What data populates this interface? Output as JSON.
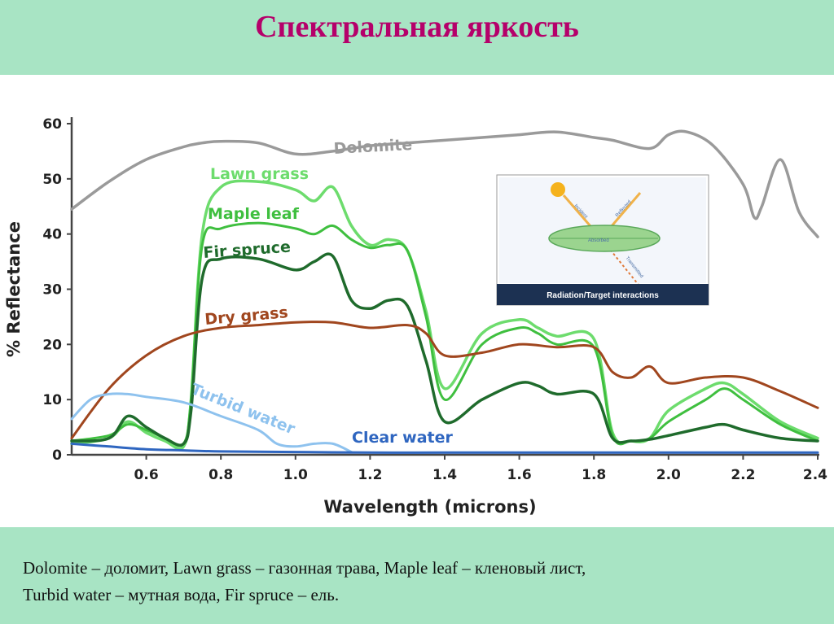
{
  "slide": {
    "title": "Спектральная яркость",
    "caption_line1": "Dolomite – доломит,  Lawn grass – газонная трава,  Maple leaf – кленовый лист,",
    "caption_line2": "Turbid water – мутная вода, Fir spruce – ель."
  },
  "inset": {
    "caption": "Radiation/Target interactions",
    "incident": "Incident",
    "reflected": "Reflected",
    "absorbed": "Absorbed",
    "transmitted": "Transmitted"
  },
  "colors": {
    "dolomite": "#9a9a9a",
    "lawn_grass": "#6ddc6d",
    "maple_leaf": "#3fbf3f",
    "fir_spruce": "#1f6b2c",
    "dry_grass": "#a0461e",
    "turbid_water": "#8ec2ee",
    "clear_water": "#2f66c0",
    "axis": "#444444"
  },
  "chart_data": {
    "type": "line",
    "title": "",
    "xlabel": "Wavelength (microns)",
    "ylabel": "% Reflectance",
    "xlim": [
      0.4,
      2.4
    ],
    "ylim": [
      0,
      60
    ],
    "x_ticks": [
      0.6,
      0.8,
      1.0,
      1.2,
      1.4,
      1.6,
      1.8,
      2.0,
      2.2,
      2.4
    ],
    "x_tick_labels": [
      "0.6",
      "0.8",
      "1.0",
      "1.2",
      "1.4",
      "1.6",
      "1.8",
      "2.0",
      "2.2",
      "2.4"
    ],
    "y_ticks": [
      0,
      10,
      20,
      30,
      40,
      50,
      60
    ],
    "y_tick_labels": [
      "0",
      "10",
      "20",
      "30",
      "40",
      "50",
      "60"
    ],
    "grid": false,
    "series": [
      {
        "key": "dolomite",
        "name": "Dolomite",
        "x": [
          0.4,
          0.5,
          0.6,
          0.7,
          0.75,
          0.8,
          0.9,
          1.0,
          1.1,
          1.2,
          1.3,
          1.4,
          1.5,
          1.6,
          1.7,
          1.8,
          1.85,
          1.95,
          2.0,
          2.05,
          2.12,
          2.2,
          2.23,
          2.25,
          2.3,
          2.35,
          2.4
        ],
        "y": [
          44.5,
          49.5,
          53.5,
          55.8,
          56.5,
          56.8,
          56.5,
          54.5,
          55,
          56,
          56.5,
          57,
          57.5,
          58,
          58.5,
          57.5,
          57,
          55.5,
          58,
          58.5,
          56,
          49,
          43,
          45,
          53.5,
          44,
          39.5
        ]
      },
      {
        "key": "lawn_grass",
        "name": "Lawn grass",
        "x": [
          0.4,
          0.5,
          0.55,
          0.6,
          0.65,
          0.7,
          0.72,
          0.75,
          0.8,
          0.9,
          1.0,
          1.05,
          1.1,
          1.15,
          1.2,
          1.25,
          1.3,
          1.35,
          1.4,
          1.5,
          1.6,
          1.65,
          1.7,
          1.8,
          1.85,
          1.9,
          1.95,
          2.0,
          2.1,
          2.15,
          2.2,
          2.3,
          2.4
        ],
        "y": [
          2,
          3,
          6,
          4,
          2.5,
          1.5,
          10,
          40,
          48.5,
          49.5,
          48,
          46,
          48.5,
          41.5,
          38,
          39,
          37,
          26,
          12,
          22,
          24.5,
          23,
          21.5,
          21,
          4,
          2.5,
          3,
          8,
          12,
          13,
          11,
          6,
          3
        ]
      },
      {
        "key": "maple_leaf",
        "name": "Maple leaf",
        "x": [
          0.4,
          0.5,
          0.55,
          0.6,
          0.65,
          0.7,
          0.72,
          0.75,
          0.8,
          0.9,
          1.0,
          1.05,
          1.1,
          1.15,
          1.2,
          1.25,
          1.3,
          1.35,
          1.4,
          1.5,
          1.6,
          1.65,
          1.7,
          1.8,
          1.85,
          1.9,
          1.95,
          2.0,
          2.1,
          2.15,
          2.2,
          2.3,
          2.4
        ],
        "y": [
          2.5,
          3.5,
          5.5,
          4.5,
          3,
          2,
          10,
          38,
          41,
          42,
          41,
          40,
          41.5,
          39,
          37.5,
          38,
          37,
          25,
          10,
          20,
          23,
          22,
          20,
          19.5,
          3.5,
          2.5,
          3,
          6,
          10,
          12,
          10,
          5.5,
          2.5
        ]
      },
      {
        "key": "fir_spruce",
        "name": "Fir spruce",
        "x": [
          0.4,
          0.5,
          0.55,
          0.6,
          0.65,
          0.7,
          0.72,
          0.75,
          0.8,
          0.9,
          1.0,
          1.05,
          1.1,
          1.15,
          1.2,
          1.25,
          1.3,
          1.35,
          1.4,
          1.5,
          1.6,
          1.65,
          1.7,
          1.8,
          1.85,
          1.9,
          1.95,
          2.0,
          2.1,
          2.15,
          2.2,
          2.3,
          2.4
        ],
        "y": [
          2.5,
          3,
          7,
          5,
          3,
          2,
          8,
          32,
          35.5,
          35.5,
          33.5,
          35,
          36,
          28,
          26.5,
          28,
          27,
          17,
          6,
          10,
          13,
          12.5,
          11,
          11,
          3,
          2.5,
          2.8,
          3.5,
          5,
          5.5,
          4.5,
          3,
          2.5
        ]
      },
      {
        "key": "dry_grass",
        "name": "Dry grass",
        "x": [
          0.4,
          0.5,
          0.6,
          0.7,
          0.8,
          0.9,
          1.0,
          1.1,
          1.2,
          1.3,
          1.35,
          1.4,
          1.5,
          1.6,
          1.7,
          1.8,
          1.85,
          1.9,
          1.95,
          2.0,
          2.1,
          2.2,
          2.3,
          2.4
        ],
        "y": [
          3,
          12,
          18,
          21.5,
          23,
          23.5,
          24,
          24,
          23,
          23.5,
          22,
          18,
          18.5,
          20,
          19.5,
          19.5,
          15,
          14,
          16,
          13,
          14,
          14,
          11.5,
          8.5
        ]
      },
      {
        "key": "turbid_water",
        "name": "Turbid water",
        "x": [
          0.4,
          0.45,
          0.5,
          0.55,
          0.6,
          0.7,
          0.8,
          0.9,
          0.95,
          1.0,
          1.05,
          1.1,
          1.15
        ],
        "y": [
          6.5,
          10,
          11,
          11,
          10.5,
          9.5,
          7,
          4.5,
          2,
          1.5,
          2,
          2,
          0.5
        ]
      },
      {
        "key": "clear_water",
        "name": "Clear water",
        "x": [
          0.4,
          0.5,
          0.6,
          0.7,
          0.8,
          1.0,
          1.2,
          1.4,
          1.8,
          2.0,
          2.4
        ],
        "y": [
          2,
          1.5,
          1,
          0.8,
          0.6,
          0.5,
          0.4,
          0.4,
          0.4,
          0.4,
          0.4
        ]
      }
    ],
    "labels": [
      {
        "series": "dolomite",
        "text": "Dolomite"
      },
      {
        "series": "lawn_grass",
        "text": "Lawn grass"
      },
      {
        "series": "maple_leaf",
        "text": "Maple leaf"
      },
      {
        "series": "fir_spruce",
        "text": "Fir spruce"
      },
      {
        "series": "dry_grass",
        "text": "Dry grass"
      },
      {
        "series": "turbid_water",
        "text": "Turbid water"
      },
      {
        "series": "clear_water",
        "text": "Clear water"
      }
    ]
  }
}
